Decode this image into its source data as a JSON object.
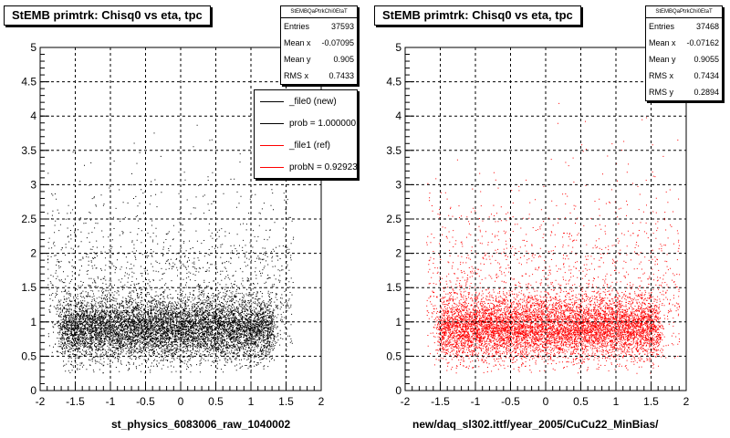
{
  "colors": {
    "new": "#000000",
    "ref": "#ff0000"
  },
  "panels": [
    {
      "title": "StEMB primtrk: Chisq0 vs eta, tpc",
      "xlabel": "st_physics_6083006_raw_1040002",
      "stats": {
        "name": "StEMBQaPtrkChi0EtaT",
        "rows": [
          {
            "label": "Entries",
            "value": "37593"
          },
          {
            "label": "Mean x",
            "value": "-0.07095"
          },
          {
            "label": "Mean y",
            "value": "0.905"
          },
          {
            "label": "RMS x",
            "value": "0.7433"
          }
        ]
      },
      "legend": [
        {
          "label": "_file0 (new)",
          "color": "#000000"
        },
        {
          "label": "prob = 1.000000",
          "color": "#000000"
        },
        {
          "label": "_file1 (ref)",
          "color": "#ff0000"
        },
        {
          "label": "probN = 0.929230",
          "color": "#ff0000"
        }
      ]
    },
    {
      "title": "StEMB primtrk: Chisq0 vs eta, tpc",
      "xlabel": "new/daq_sl302.ittf/year_2005/CuCu22_MinBias/",
      "stats": {
        "name": "StEMBQaPtrkChi0EtaT",
        "rows": [
          {
            "label": "Entries",
            "value": "37468"
          },
          {
            "label": "Mean x",
            "value": "-0.07162"
          },
          {
            "label": "Mean y",
            "value": "0.9055"
          },
          {
            "label": "RMS x",
            "value": "0.7434"
          },
          {
            "label": "RMS y",
            "value": "0.2894"
          }
        ]
      }
    }
  ],
  "chart_data": [
    {
      "type": "scatter",
      "title": "StEMB primtrk: Chisq0 vs eta, tpc",
      "xlabel": "st_physics_6083006_raw_1040002",
      "ylabel": "",
      "xlim": [
        -2,
        2
      ],
      "ylim": [
        0,
        5
      ],
      "xticks": [
        "-2",
        "-1.5",
        "-1",
        "-0.5",
        "0",
        "0.5",
        "1",
        "1.5",
        "2"
      ],
      "yticks": [
        "0",
        "0.5",
        "1",
        "1.5",
        "2",
        "2.5",
        "3",
        "3.5",
        "4",
        "4.5",
        "5"
      ],
      "grid": true,
      "series": [
        {
          "name": "_file0 (new)",
          "color": "#000000",
          "entries": 37593,
          "mean_x": -0.07095,
          "mean_y": 0.905,
          "rms_x": 0.7433,
          "core_y_range": [
            0.5,
            1.45
          ],
          "core_x_range": [
            -1.7,
            1.3
          ]
        }
      ]
    },
    {
      "type": "scatter",
      "title": "StEMB primtrk: Chisq0 vs eta, tpc",
      "xlabel": "new/daq_sl302.ittf/year_2005/CuCu22_MinBias/",
      "ylabel": "",
      "xlim": [
        -2,
        2
      ],
      "ylim": [
        0,
        5
      ],
      "xticks": [
        "-2",
        "-1.5",
        "-1",
        "-0.5",
        "0",
        "0.5",
        "1",
        "1.5",
        "2"
      ],
      "yticks": [
        "0",
        "0.5",
        "1",
        "1.5",
        "2",
        "2.5",
        "3",
        "3.5",
        "4",
        "4.5",
        "5"
      ],
      "grid": true,
      "series": [
        {
          "name": "_file1 (ref)",
          "color": "#ff0000",
          "entries": 37468,
          "mean_x": -0.07162,
          "mean_y": 0.9055,
          "rms_x": 0.7434,
          "rms_y": 0.2894,
          "core_y_range": [
            0.5,
            1.45
          ],
          "core_x_range": [
            -1.5,
            1.6
          ]
        }
      ]
    }
  ]
}
